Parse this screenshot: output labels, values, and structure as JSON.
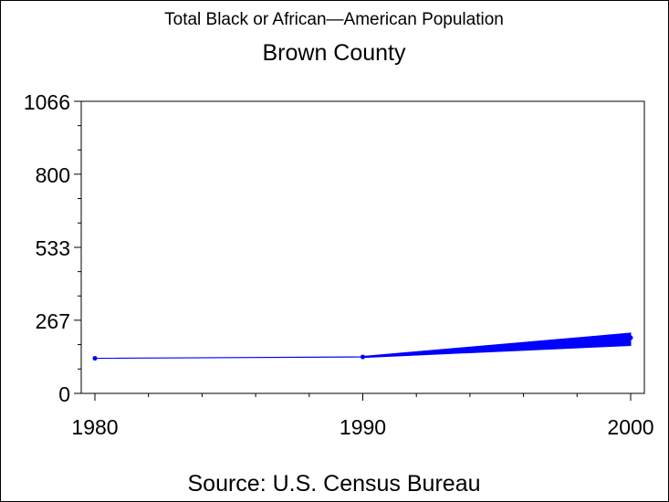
{
  "chart_data": {
    "type": "line",
    "title": "Total Black or African—American Population",
    "subtitle": "Brown County",
    "source": "Source: U.S. Census Bureau",
    "xlabel": "",
    "ylabel": "",
    "x": [
      1980,
      1990,
      2000
    ],
    "x_ticks": [
      "1980",
      "1990",
      "2000"
    ],
    "y_ticks": [
      "0",
      "267",
      "533",
      "800",
      "1066"
    ],
    "ylim": [
      0,
      1066
    ],
    "xlim": [
      1980,
      2000
    ],
    "series": [
      {
        "values": [
          128,
          133,
          203
        ],
        "color": "#0000ff"
      }
    ],
    "band_2000": [
      175,
      220
    ],
    "grid": false,
    "legend": "none"
  }
}
